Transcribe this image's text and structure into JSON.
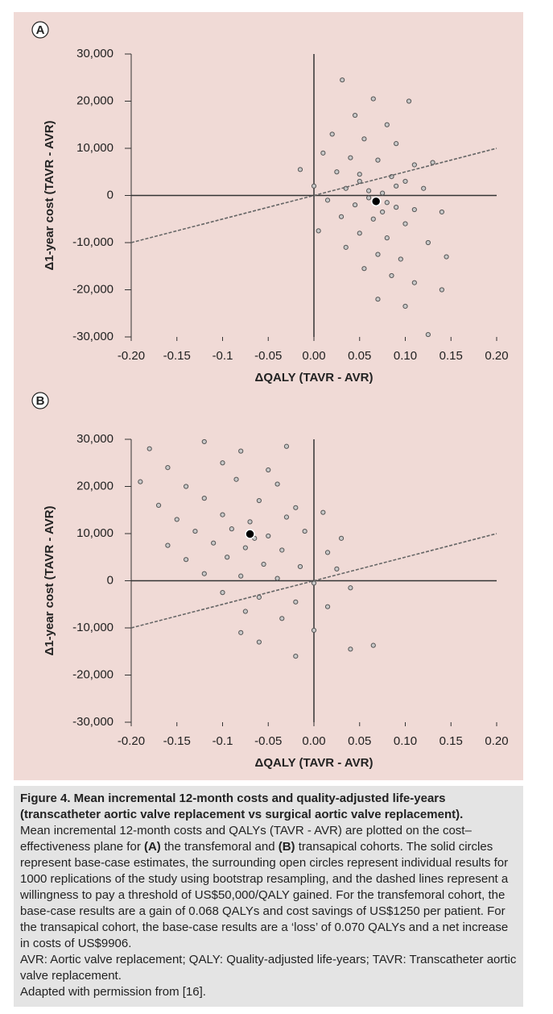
{
  "chart_data": [
    {
      "type": "scatter",
      "panel": "A",
      "xlabel": "ΔQALY (TAVR - AVR)",
      "ylabel": "Δ1-year cost (TAVR - AVR)",
      "xlim": [
        -0.2,
        0.2
      ],
      "ylim": [
        -30000,
        30000
      ],
      "xticks": [
        {
          "value": -0.2,
          "label": "-0.20"
        },
        -0.15,
        -0.1,
        -0.05,
        {
          "value": 0,
          "label": "0.00"
        },
        0.05,
        {
          "value": 0.1,
          "label": "0.10"
        },
        0.15,
        {
          "value": 0.2,
          "label": "0.20"
        }
      ],
      "yticks": [
        {
          "value": -30000,
          "label": "-30,000"
        },
        {
          "value": -20000,
          "label": "-20,000"
        },
        {
          "value": -10000,
          "label": "-10,000"
        },
        0,
        {
          "value": 10000,
          "label": "10,000"
        },
        {
          "value": 20000,
          "label": "20,000"
        },
        {
          "value": 30000,
          "label": "30,000"
        }
      ],
      "series": [
        {
          "mode": "markers",
          "style": "open",
          "color": "#555555",
          "x": [
            0.031,
            0.065,
            0.104,
            0.045,
            0.08,
            0.02,
            0.055,
            0.09,
            0.01,
            0.04,
            0.07,
            0.11,
            0.13,
            0.025,
            0.05,
            0.085,
            0.1,
            -0.015,
            0.0,
            0.035,
            0.06,
            0.12,
            0.075,
            0.015,
            0.045,
            0.09,
            0.11,
            0.14,
            0.03,
            0.065,
            0.1,
            0.005,
            0.05,
            0.08,
            0.125,
            0.035,
            0.07,
            0.095,
            0.145,
            0.055,
            0.085,
            0.11,
            0.14,
            0.07,
            0.1,
            0.125,
            0.06,
            0.08,
            0.05,
            0.09,
            0.075
          ],
          "values": [
            24500,
            20500,
            20000,
            17000,
            15000,
            13000,
            12000,
            11000,
            9000,
            8000,
            7500,
            6500,
            7000,
            5000,
            4500,
            4000,
            3000,
            5500,
            2000,
            1500,
            1000,
            1500,
            500,
            -1000,
            -2000,
            -2500,
            -3000,
            -3500,
            -4500,
            -5000,
            -6000,
            -7500,
            -8000,
            -9000,
            -10000,
            -11000,
            -12500,
            -13500,
            -13000,
            -15500,
            -17000,
            -18500,
            -20000,
            -22000,
            -23500,
            -29500,
            -500,
            -1500,
            3000,
            2000,
            -3500
          ]
        },
        {
          "mode": "markers",
          "style": "filled",
          "color": "#000000",
          "x": [
            0.068
          ],
          "values": [
            -1250
          ]
        },
        {
          "mode": "line",
          "style": "dashed",
          "color": "#666666",
          "x": [
            -0.2,
            0.2
          ],
          "values": [
            -10000,
            10000
          ]
        }
      ]
    },
    {
      "type": "scatter",
      "panel": "B",
      "xlabel": "ΔQALY (TAVR - AVR)",
      "ylabel": "Δ1-year cost (TAVR - AVR)",
      "xlim": [
        -0.2,
        0.2
      ],
      "ylim": [
        -30000,
        30000
      ],
      "xticks": [
        {
          "value": -0.2,
          "label": "-0.20"
        },
        -0.15,
        -0.1,
        -0.05,
        {
          "value": 0,
          "label": "0.00"
        },
        0.05,
        {
          "value": 0.1,
          "label": "0.10"
        },
        0.15,
        {
          "value": 0.2,
          "label": "0.20"
        }
      ],
      "yticks": [
        {
          "value": -30000,
          "label": "-30,000"
        },
        {
          "value": -20000,
          "label": "-20,000"
        },
        {
          "value": -10000,
          "label": "-10,000"
        },
        0,
        {
          "value": 10000,
          "label": "10,000"
        },
        {
          "value": 20000,
          "label": "20,000"
        },
        {
          "value": 30000,
          "label": "30,000"
        }
      ],
      "series": [
        {
          "mode": "markers",
          "style": "open",
          "color": "#555555",
          "x": [
            -0.18,
            -0.12,
            -0.08,
            -0.03,
            -0.16,
            -0.1,
            -0.05,
            -0.19,
            -0.14,
            -0.085,
            -0.04,
            -0.17,
            -0.12,
            -0.06,
            -0.02,
            -0.15,
            -0.1,
            -0.07,
            -0.03,
            0.01,
            -0.13,
            -0.09,
            -0.05,
            -0.01,
            0.03,
            -0.16,
            -0.11,
            -0.075,
            -0.035,
            0.015,
            -0.14,
            -0.095,
            -0.055,
            -0.015,
            0.025,
            -0.12,
            -0.08,
            -0.04,
            0.0,
            0.04,
            -0.1,
            -0.06,
            -0.02,
            0.015,
            -0.075,
            -0.035,
            -0.08,
            -0.06,
            -0.02,
            0.04,
            0.065,
            0.0,
            -0.07,
            -0.065
          ],
          "values": [
            28000,
            29500,
            27500,
            28500,
            24000,
            25000,
            23500,
            21000,
            20000,
            21500,
            20500,
            16000,
            17500,
            17000,
            15500,
            13000,
            14000,
            12500,
            13500,
            14500,
            10500,
            11000,
            9500,
            10500,
            9000,
            7500,
            8000,
            7000,
            6500,
            6000,
            4500,
            5000,
            3500,
            3000,
            2500,
            1500,
            1000,
            500,
            -500,
            -1500,
            -2500,
            -3500,
            -4500,
            -5500,
            -6500,
            -8000,
            -11000,
            -13000,
            -16000,
            -14500,
            -13700,
            -10500,
            10200,
            9000
          ]
        },
        {
          "mode": "markers",
          "style": "filled",
          "color": "#000000",
          "x": [
            -0.07
          ],
          "values": [
            9906
          ]
        },
        {
          "mode": "line",
          "style": "dashed",
          "color": "#666666",
          "x": [
            -0.2,
            0.2
          ],
          "values": [
            -10000,
            10000
          ]
        }
      ]
    }
  ],
  "caption": {
    "title": "Figure 4. Mean incremental 12-month costs and quality-adjusted life-years (transcatheter aortic valve replacement vs surgical aortic valve replacement).",
    "body": [
      "Mean incremental 12-month costs and QALYs (TAVR - AVR) are plotted on the cost–effectiveness plane for ",
      "(A)",
      " the transfemoral and ",
      "(B)",
      " transapical cohorts. The solid circles represent base-case estimates, the surrounding open circles represent individual results for 1000 replications of the study using bootstrap resampling, and the dashed lines represent a willingness to pay a threshold of US$50,000/QALY gained. For the transfemoral cohort, the base-case results are a gain of 0.068 QALYs and cost savings of US$1250 per patient. For the transapical cohort, the base-case results are a ‘loss’ of 0.070 QALYs and a net increase in costs of US$9906."
    ],
    "abbreviations": "AVR: Aortic valve replacement; QALY: Quality-adjusted life-years; TAVR: Transcatheter aortic valve replacement.",
    "source": "Adapted with permission from [16]."
  }
}
